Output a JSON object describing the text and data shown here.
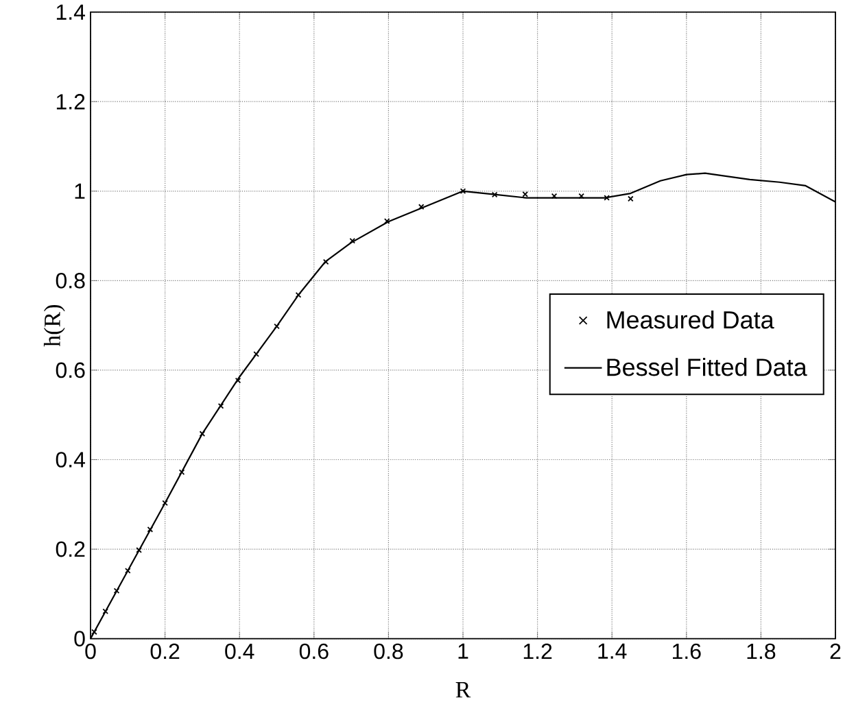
{
  "chart_data": {
    "type": "line",
    "xlabel": "R",
    "ylabel": "h(R)",
    "xlim": [
      0,
      2
    ],
    "ylim": [
      0,
      1.4
    ],
    "xticks": [
      0,
      0.2,
      0.4,
      0.6,
      0.8,
      1,
      1.2,
      1.4,
      1.6,
      1.8,
      2
    ],
    "yticks": [
      0,
      0.2,
      0.4,
      0.6,
      0.8,
      1,
      1.2,
      1.4
    ],
    "grid": true,
    "legend": "right",
    "series": [
      {
        "name": "Measured Data",
        "type": "scatter",
        "marker": "cross",
        "color": "#000000",
        "x": [
          0.01,
          0.04,
          0.07,
          0.1,
          0.13,
          0.16,
          0.2,
          0.245,
          0.3,
          0.35,
          0.396,
          0.445,
          0.5,
          0.558,
          0.632,
          0.703,
          0.796,
          0.888,
          1.0,
          1.085,
          1.167,
          1.245,
          1.318,
          1.386,
          1.45
        ],
        "values": [
          0.015,
          0.061,
          0.107,
          0.152,
          0.198,
          0.244,
          0.303,
          0.372,
          0.458,
          0.52,
          0.577,
          0.636,
          0.698,
          0.768,
          0.842,
          0.889,
          0.933,
          0.965,
          1.0,
          0.992,
          0.993,
          0.989,
          0.989,
          0.985,
          0.983
        ]
      },
      {
        "name": "Bessel Fitted Data",
        "type": "line",
        "marker": "none",
        "line_style": "solid",
        "color": "#000000",
        "x": [
          0,
          0.1,
          0.2,
          0.3,
          0.4,
          0.5,
          0.56,
          0.63,
          0.7,
          0.8,
          0.9,
          1.0,
          1.08,
          1.17,
          1.25,
          1.32,
          1.38,
          1.45,
          1.53,
          1.6,
          1.65,
          1.77,
          1.85,
          1.92,
          2.0
        ],
        "values": [
          0,
          0.152,
          0.303,
          0.458,
          0.585,
          0.698,
          0.77,
          0.842,
          0.885,
          0.932,
          0.966,
          1.0,
          0.993,
          0.985,
          0.985,
          0.985,
          0.985,
          0.995,
          1.023,
          1.037,
          1.04,
          1.026,
          1.02,
          1.012,
          0.976
        ]
      }
    ]
  }
}
